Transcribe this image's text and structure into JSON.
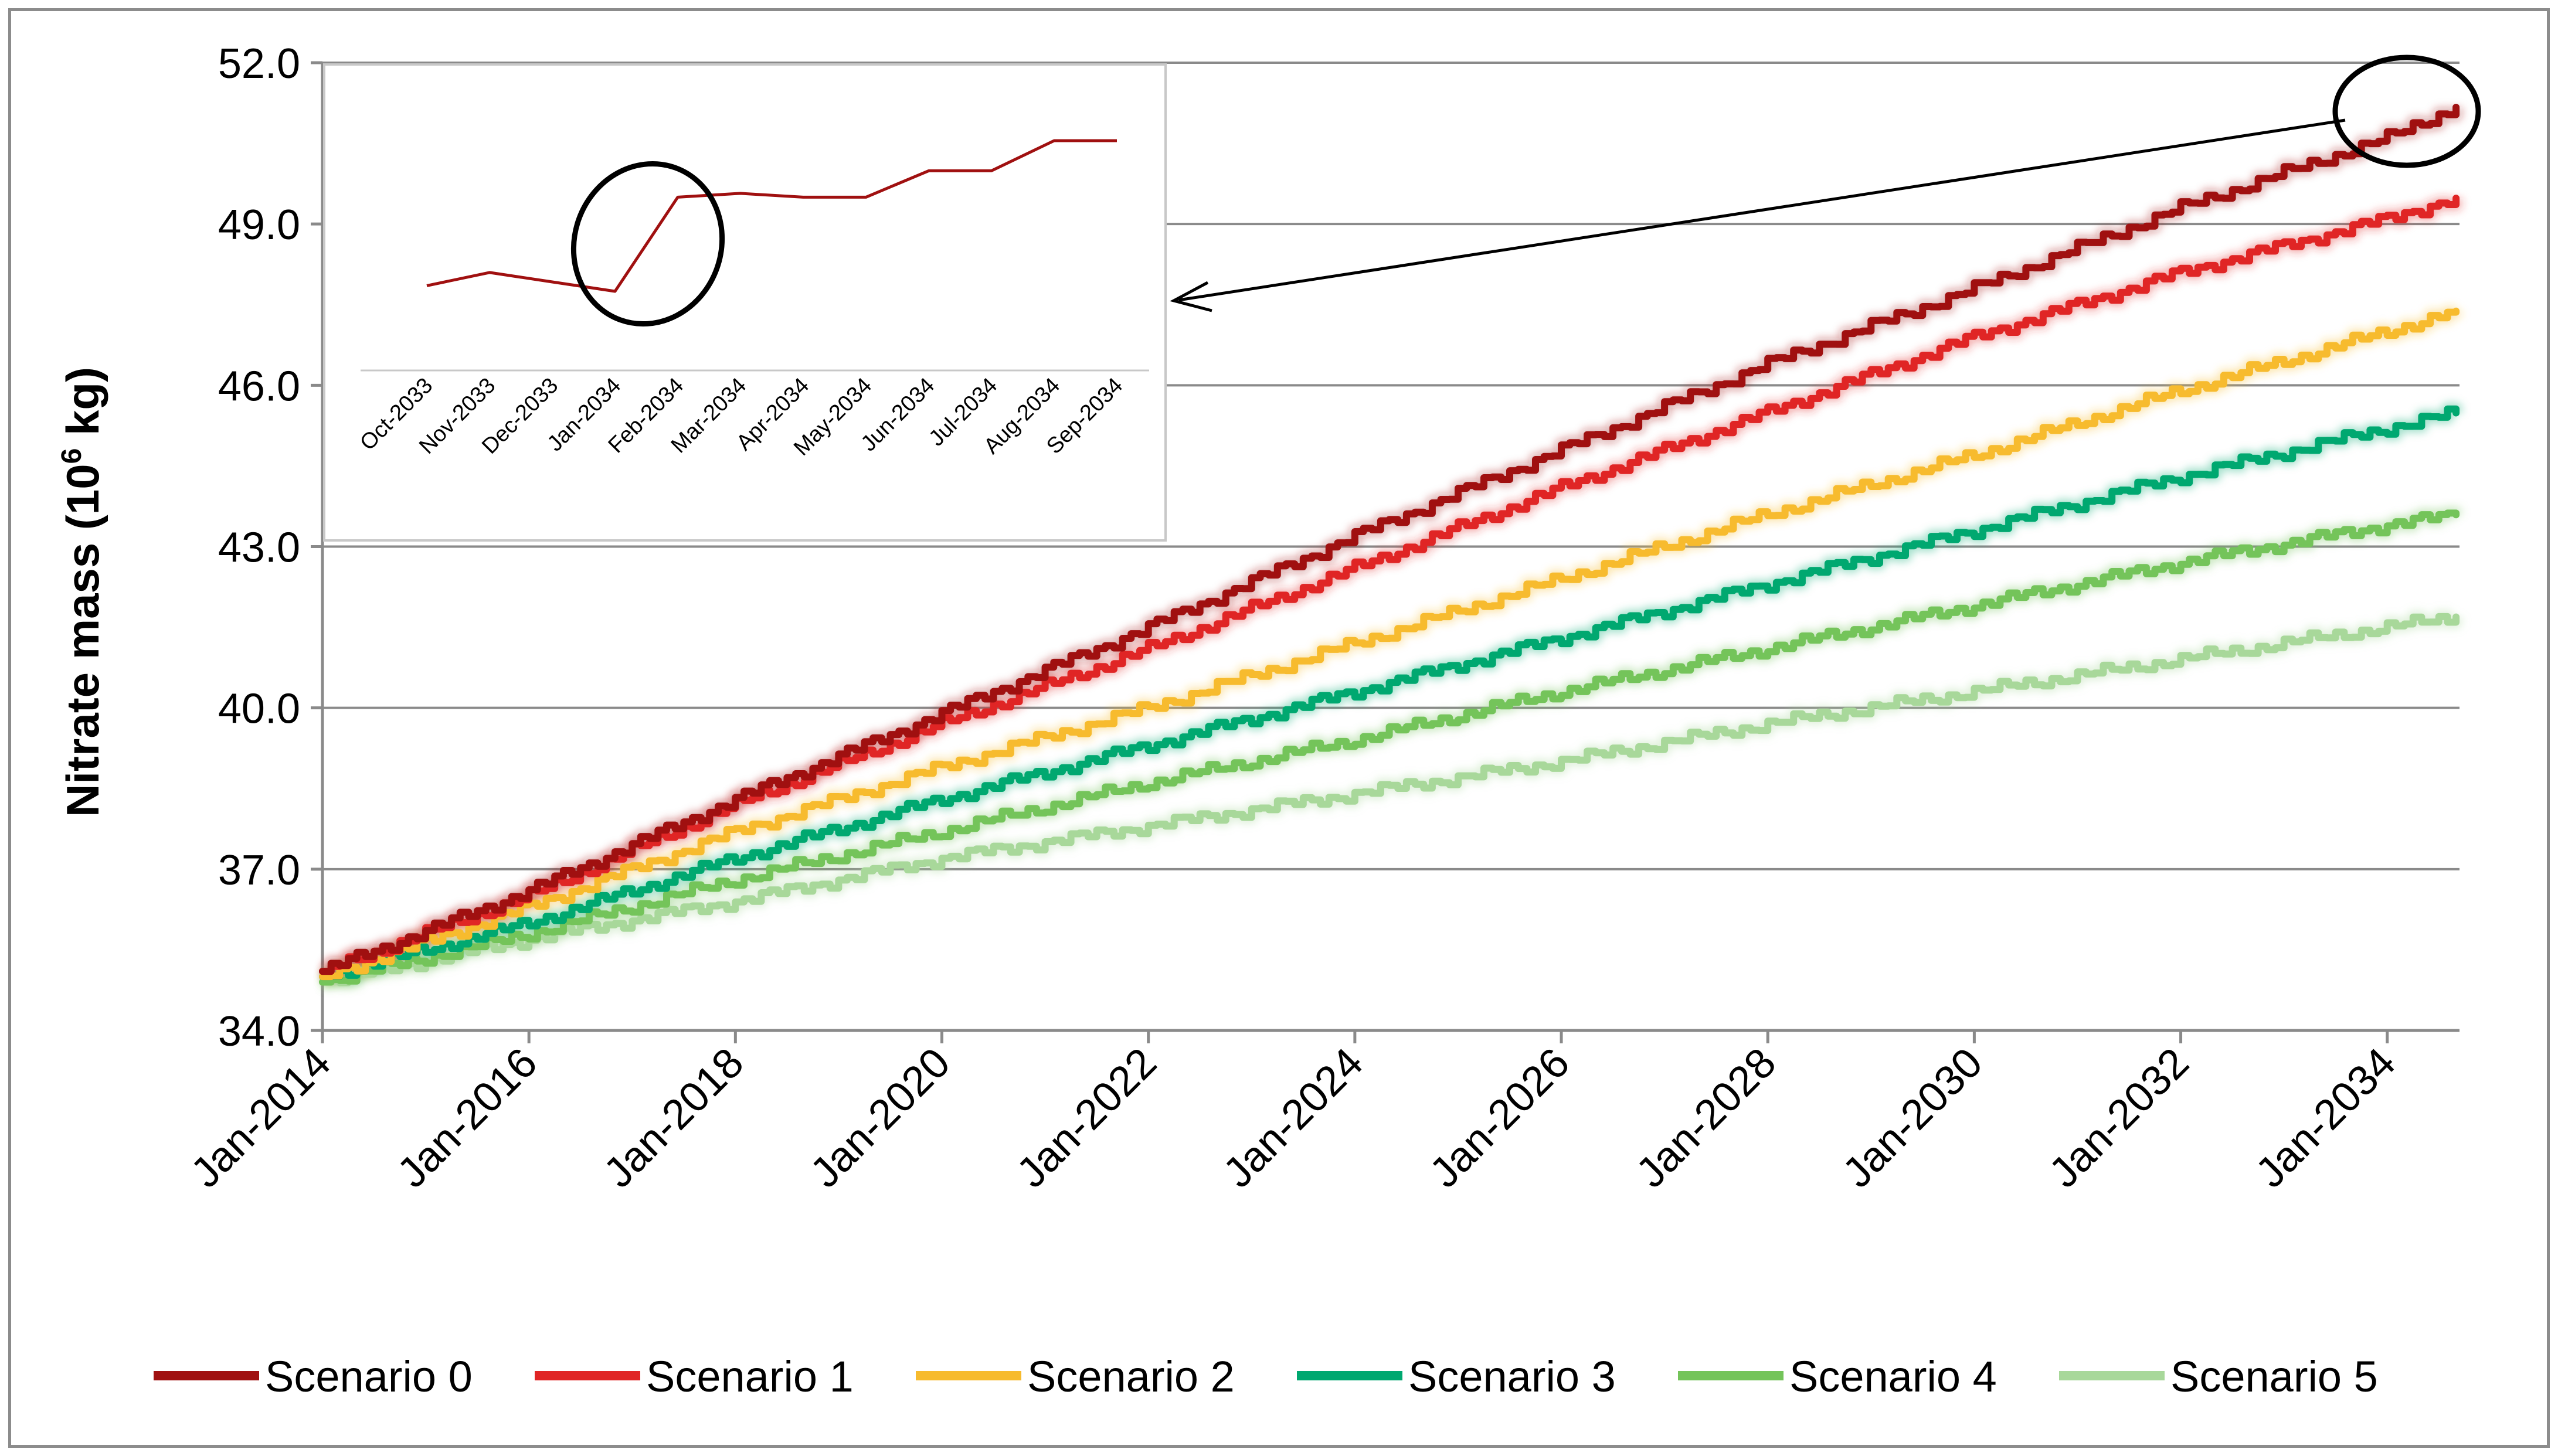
{
  "chart_data": {
    "type": "line",
    "title": "",
    "xlabel": "",
    "ylabel": "Nitrate mass (10",
    "ylabel_sup": "6",
    "ylabel_unit": " kg)",
    "ylim": [
      34.0,
      52.0
    ],
    "yticks": [
      "34.0",
      "37.0",
      "40.0",
      "43.0",
      "46.0",
      "49.0",
      "52.0"
    ],
    "yticks_values": [
      34,
      37,
      40,
      43,
      46,
      49,
      52
    ],
    "xlim": [
      2014.0,
      2034.7
    ],
    "xticks": [
      "Jan-2014",
      "Jan-2016",
      "Jan-2018",
      "Jan-2020",
      "Jan-2022",
      "Jan-2024",
      "Jan-2026",
      "Jan-2028",
      "Jan-2030",
      "Jan-2032",
      "Jan-2034"
    ],
    "xticks_values": [
      2014,
      2016,
      2018,
      2020,
      2022,
      2024,
      2026,
      2028,
      2030,
      2032,
      2034
    ],
    "grid": "horizontal",
    "legend_position": "bottom",
    "series": [
      {
        "name": "Scenario 0",
        "color": "#a01010",
        "x": [
          2014,
          2016,
          2018,
          2020,
          2022,
          2024,
          2026,
          2028,
          2030,
          2032,
          2034,
          2034.7
        ],
        "values": [
          35.1,
          36.6,
          38.3,
          39.9,
          41.5,
          43.2,
          44.8,
          46.4,
          47.8,
          49.3,
          50.6,
          51.2
        ]
      },
      {
        "name": "Scenario 1",
        "color": "#e02525",
        "x": [
          2014,
          2016,
          2018,
          2020,
          2022,
          2024,
          2026,
          2028,
          2030,
          2032,
          2034,
          2034.7
        ],
        "values": [
          35.1,
          36.5,
          38.2,
          39.7,
          41.1,
          42.6,
          44.1,
          45.5,
          46.9,
          48.1,
          49.1,
          49.5
        ]
      },
      {
        "name": "Scenario 2",
        "color": "#f7bb2e",
        "x": [
          2014,
          2016,
          2018,
          2020,
          2022,
          2024,
          2026,
          2028,
          2030,
          2032,
          2034,
          2034.7
        ],
        "values": [
          35.0,
          36.3,
          37.7,
          38.9,
          40.0,
          41.2,
          42.4,
          43.6,
          44.7,
          45.9,
          47.0,
          47.4
        ]
      },
      {
        "name": "Scenario 3",
        "color": "#00a870",
        "x": [
          2014,
          2016,
          2018,
          2020,
          2022,
          2024,
          2026,
          2028,
          2030,
          2032,
          2034,
          2034.7
        ],
        "values": [
          35.0,
          36.0,
          37.2,
          38.3,
          39.3,
          40.3,
          41.3,
          42.3,
          43.3,
          44.3,
          45.2,
          45.5
        ]
      },
      {
        "name": "Scenario 4",
        "color": "#74c45a",
        "x": [
          2014,
          2016,
          2018,
          2020,
          2022,
          2024,
          2026,
          2028,
          2030,
          2032,
          2034,
          2034.7
        ],
        "values": [
          34.9,
          35.8,
          36.8,
          37.7,
          38.6,
          39.4,
          40.3,
          41.1,
          41.9,
          42.7,
          43.4,
          43.6
        ]
      },
      {
        "name": "Scenario 5",
        "color": "#a8d89a",
        "x": [
          2014,
          2016,
          2018,
          2020,
          2022,
          2024,
          2026,
          2028,
          2030,
          2032,
          2034,
          2034.7
        ],
        "values": [
          34.9,
          35.7,
          36.4,
          37.2,
          37.8,
          38.4,
          39.0,
          39.7,
          40.3,
          40.9,
          41.5,
          41.7
        ]
      }
    ],
    "inset": {
      "type": "line",
      "categories": [
        "Oct-2033",
        "Nov-2033",
        "Dec-2033",
        "Jan-2034",
        "Feb-2034",
        "Mar-2034",
        "Apr-2034",
        "May-2034",
        "Jun-2034",
        "Jul-2034",
        "Aug-2034",
        "Sep-2034"
      ],
      "values": [
        50.25,
        50.32,
        50.27,
        50.22,
        50.72,
        50.74,
        50.72,
        50.72,
        50.86,
        50.86,
        51.02,
        51.02
      ],
      "color": "#a01010",
      "ylim": [
        49.8,
        51.3
      ]
    }
  }
}
